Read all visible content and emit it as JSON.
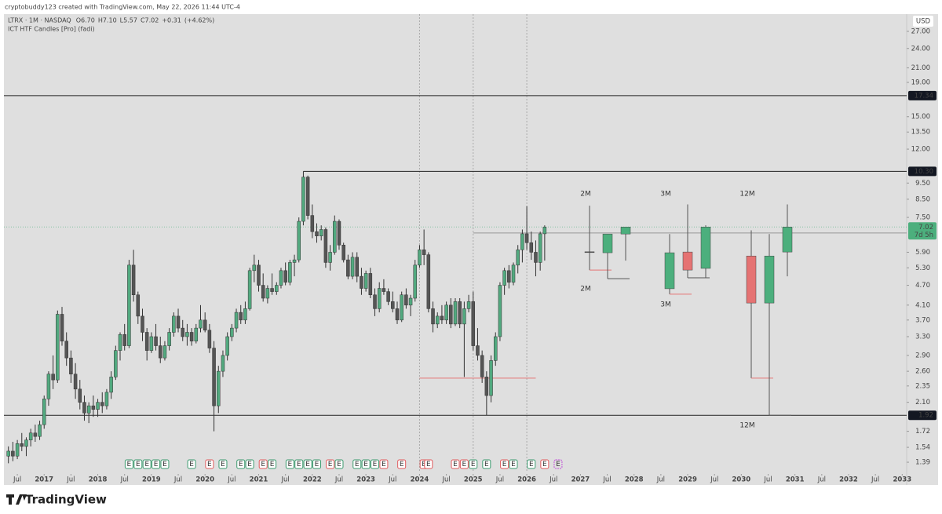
{
  "header": {
    "attribution": "cryptobuddy123 created with TradingView.com, May 22, 2026 11:44 UTC-4"
  },
  "footer": {
    "brand": "TradingView"
  },
  "chart_data": {
    "type": "candlestick",
    "symbol": "LTRX · 1M · NASDAQ",
    "legend_values": [
      {
        "value": 6.7,
        "label": "O6.70"
      },
      {
        "value": 7.1,
        "label": "H7.10"
      },
      {
        "value": 5.57,
        "label": "L5.57"
      },
      {
        "value": 7.02,
        "label": "C7.02"
      },
      {
        "value": 0.31,
        "label": "+0.31"
      },
      {
        "value": 4.62,
        "label": "(+4.62%)"
      }
    ],
    "indicator": "ICT HTF Candles [Pro] (fadi)",
    "currency": "USD",
    "log_scale": true,
    "up_color": "#52a97f",
    "down_color": "#555555",
    "ylim": [
      1.31,
      30.4
    ],
    "yticks": [
      {
        "value": 27,
        "label": "27.00"
      },
      {
        "value": 24,
        "label": "24.00"
      },
      {
        "value": 21,
        "label": "21.00"
      },
      {
        "value": 19,
        "label": "19.00"
      },
      {
        "value": 15,
        "label": "15.00"
      },
      {
        "value": 13.5,
        "label": "13.50"
      },
      {
        "value": 12,
        "label": "12.00"
      },
      {
        "value": 9.5,
        "label": "9.50"
      },
      {
        "value": 8.5,
        "label": "8.50"
      },
      {
        "value": 7.5,
        "label": "7.50"
      },
      {
        "value": 5.9,
        "label": "5.90"
      },
      {
        "value": 5.3,
        "label": "5.30"
      },
      {
        "value": 4.7,
        "label": "4.70"
      },
      {
        "value": 4.1,
        "label": "4.10"
      },
      {
        "value": 3.7,
        "label": "3.70"
      },
      {
        "value": 3.3,
        "label": "3.30"
      },
      {
        "value": 2.9,
        "label": "2.90"
      },
      {
        "value": 2.6,
        "label": "2.60"
      },
      {
        "value": 2.35,
        "label": "2.35"
      },
      {
        "value": 2.1,
        "label": "2.10"
      },
      {
        "value": 1.72,
        "label": "1.72"
      },
      {
        "value": 1.54,
        "label": "1.54"
      },
      {
        "value": 1.39,
        "label": "1.39"
      }
    ],
    "xlim": [
      "2016-04",
      "2033-02"
    ],
    "xticks": [
      {
        "value": "2016-07",
        "label": "Jul"
      },
      {
        "value": "2017-01",
        "label": "2017"
      },
      {
        "value": "2017-07",
        "label": "Jul"
      },
      {
        "value": "2018-01",
        "label": "2018"
      },
      {
        "value": "2018-07",
        "label": "Jul"
      },
      {
        "value": "2019-01",
        "label": "2019"
      },
      {
        "value": "2019-07",
        "label": "Jul"
      },
      {
        "value": "2020-01",
        "label": "2020"
      },
      {
        "value": "2020-07",
        "label": "Jul"
      },
      {
        "value": "2021-01",
        "label": "2021"
      },
      {
        "value": "2021-07",
        "label": "Jul"
      },
      {
        "value": "2022-01",
        "label": "2022"
      },
      {
        "value": "2022-07",
        "label": "Jul"
      },
      {
        "value": "2023-01",
        "label": "2023"
      },
      {
        "value": "2023-07",
        "label": "Jul"
      },
      {
        "value": "2024-01",
        "label": "2024"
      },
      {
        "value": "2024-07",
        "label": "Jul"
      },
      {
        "value": "2025-01",
        "label": "2025"
      },
      {
        "value": "2025-07",
        "label": "Jul"
      },
      {
        "value": "2026-01",
        "label": "2026"
      },
      {
        "value": "2026-07",
        "label": "Jul"
      },
      {
        "value": "2027-01",
        "label": "2027"
      },
      {
        "value": "2027-07",
        "label": "Jul"
      },
      {
        "value": "2028-01",
        "label": "2028"
      },
      {
        "value": "2028-07",
        "label": "Jul"
      },
      {
        "value": "2029-01",
        "label": "2029"
      },
      {
        "value": "2029-07",
        "label": "Jul"
      },
      {
        "value": "2030-01",
        "label": "2030"
      },
      {
        "value": "2030-07",
        "label": "Jul"
      },
      {
        "value": "2031-01",
        "label": "2031"
      },
      {
        "value": "2031-07",
        "label": "Jul"
      },
      {
        "value": "2032-01",
        "label": "2032"
      },
      {
        "value": "2032-07",
        "label": "Jul"
      },
      {
        "value": "2033-01",
        "label": "2033"
      }
    ],
    "x": [
      "2016-05",
      "2016-06",
      "2016-07",
      "2016-08",
      "2016-09",
      "2016-10",
      "2016-11",
      "2016-12",
      "2017-01",
      "2017-02",
      "2017-03",
      "2017-04",
      "2017-05",
      "2017-06",
      "2017-07",
      "2017-08",
      "2017-09",
      "2017-10",
      "2017-11",
      "2017-12",
      "2018-01",
      "2018-02",
      "2018-03",
      "2018-04",
      "2018-05",
      "2018-06",
      "2018-07",
      "2018-08",
      "2018-09",
      "2018-10",
      "2018-11",
      "2018-12",
      "2019-01",
      "2019-02",
      "2019-03",
      "2019-04",
      "2019-05",
      "2019-06",
      "2019-07",
      "2019-08",
      "2019-09",
      "2019-10",
      "2019-11",
      "2019-12",
      "2020-01",
      "2020-02",
      "2020-03",
      "2020-04",
      "2020-05",
      "2020-06",
      "2020-07",
      "2020-08",
      "2020-09",
      "2020-10",
      "2020-11",
      "2020-12",
      "2021-01",
      "2021-02",
      "2021-03",
      "2021-04",
      "2021-05",
      "2021-06",
      "2021-07",
      "2021-08",
      "2021-09",
      "2021-10",
      "2021-11",
      "2021-12",
      "2022-01",
      "2022-02",
      "2022-03",
      "2022-04",
      "2022-05",
      "2022-06",
      "2022-07",
      "2022-08",
      "2022-09",
      "2022-10",
      "2022-11",
      "2022-12",
      "2023-01",
      "2023-02",
      "2023-03",
      "2023-04",
      "2023-05",
      "2023-06",
      "2023-07",
      "2023-08",
      "2023-09",
      "2023-10",
      "2023-11",
      "2023-12",
      "2024-01",
      "2024-02",
      "2024-03",
      "2024-04",
      "2024-05",
      "2024-06",
      "2024-07",
      "2024-08",
      "2024-09",
      "2024-10",
      "2024-11",
      "2024-12",
      "2025-01",
      "2025-02",
      "2025-03",
      "2025-04",
      "2025-05",
      "2025-06",
      "2025-07",
      "2025-08",
      "2025-09",
      "2025-10",
      "2025-11",
      "2025-12",
      "2026-01",
      "2026-02",
      "2026-03",
      "2026-04",
      "2026-05"
    ],
    "candles": [
      [
        1.45,
        1.55,
        1.38,
        1.5
      ],
      [
        1.5,
        1.6,
        1.4,
        1.45
      ],
      [
        1.45,
        1.62,
        1.42,
        1.58
      ],
      [
        1.58,
        1.7,
        1.5,
        1.55
      ],
      [
        1.55,
        1.65,
        1.45,
        1.62
      ],
      [
        1.62,
        1.75,
        1.55,
        1.7
      ],
      [
        1.7,
        1.8,
        1.6,
        1.66
      ],
      [
        1.66,
        1.85,
        1.62,
        1.8
      ],
      [
        1.8,
        2.2,
        1.75,
        2.15
      ],
      [
        2.15,
        2.6,
        2.05,
        2.55
      ],
      [
        2.55,
        2.9,
        2.3,
        2.45
      ],
      [
        2.45,
        3.95,
        2.4,
        3.85
      ],
      [
        3.85,
        4.05,
        3.1,
        3.2
      ],
      [
        3.2,
        3.4,
        2.7,
        2.85
      ],
      [
        2.85,
        3.0,
        2.4,
        2.55
      ],
      [
        2.55,
        2.75,
        2.15,
        2.3
      ],
      [
        2.3,
        2.45,
        2.0,
        2.1
      ],
      [
        2.1,
        2.2,
        1.85,
        1.95
      ],
      [
        1.95,
        2.1,
        1.82,
        2.05
      ],
      [
        2.05,
        2.2,
        1.9,
        2.0
      ],
      [
        2.0,
        2.15,
        1.9,
        2.1
      ],
      [
        2.1,
        2.25,
        1.95,
        2.05
      ],
      [
        2.05,
        2.3,
        2.0,
        2.25
      ],
      [
        2.25,
        2.6,
        2.15,
        2.5
      ],
      [
        2.5,
        3.1,
        2.45,
        3.0
      ],
      [
        3.0,
        3.4,
        2.8,
        3.35
      ],
      [
        3.35,
        3.6,
        3.0,
        3.1
      ],
      [
        3.1,
        5.6,
        3.05,
        5.4
      ],
      [
        5.4,
        6.0,
        4.2,
        4.4
      ],
      [
        4.4,
        4.5,
        3.6,
        3.8
      ],
      [
        3.8,
        4.0,
        3.2,
        3.4
      ],
      [
        3.4,
        3.5,
        2.8,
        3.0
      ],
      [
        3.0,
        3.4,
        2.95,
        3.3
      ],
      [
        3.3,
        3.6,
        3.0,
        3.1
      ],
      [
        3.1,
        3.3,
        2.75,
        2.85
      ],
      [
        2.85,
        3.2,
        2.8,
        3.1
      ],
      [
        3.1,
        3.5,
        3.0,
        3.4
      ],
      [
        3.4,
        3.9,
        3.3,
        3.8
      ],
      [
        3.8,
        4.0,
        3.4,
        3.5
      ],
      [
        3.5,
        3.7,
        3.2,
        3.3
      ],
      [
        3.3,
        3.6,
        3.1,
        3.4
      ],
      [
        3.4,
        3.5,
        3.1,
        3.2
      ],
      [
        3.2,
        3.6,
        3.15,
        3.5
      ],
      [
        3.5,
        4.1,
        3.4,
        3.7
      ],
      [
        3.7,
        3.9,
        3.4,
        3.45
      ],
      [
        3.45,
        3.6,
        2.95,
        3.05
      ],
      [
        3.05,
        3.2,
        1.72,
        2.05
      ],
      [
        2.05,
        2.7,
        1.95,
        2.6
      ],
      [
        2.6,
        3.0,
        2.5,
        2.9
      ],
      [
        2.9,
        3.4,
        2.8,
        3.3
      ],
      [
        3.3,
        3.6,
        3.2,
        3.5
      ],
      [
        3.5,
        4.0,
        3.4,
        3.9
      ],
      [
        3.9,
        4.1,
        3.6,
        3.7
      ],
      [
        3.7,
        4.2,
        3.6,
        4.0
      ],
      [
        4.0,
        5.3,
        3.95,
        5.2
      ],
      [
        5.2,
        5.8,
        4.8,
        5.4
      ],
      [
        5.4,
        5.6,
        4.5,
        4.7
      ],
      [
        4.7,
        5.1,
        4.2,
        4.3
      ],
      [
        4.3,
        4.7,
        4.15,
        4.6
      ],
      [
        4.6,
        5.1,
        4.4,
        4.5
      ],
      [
        4.5,
        4.8,
        4.4,
        4.7
      ],
      [
        4.7,
        5.3,
        4.6,
        5.2
      ],
      [
        5.2,
        5.5,
        4.7,
        4.8
      ],
      [
        4.8,
        5.6,
        4.7,
        5.5
      ],
      [
        5.5,
        5.8,
        5.0,
        5.6
      ],
      [
        5.6,
        7.5,
        5.5,
        7.3
      ],
      [
        7.3,
        10.3,
        7.1,
        9.9
      ],
      [
        9.9,
        10.0,
        7.4,
        7.6
      ],
      [
        7.6,
        8.2,
        6.5,
        6.8
      ],
      [
        6.8,
        7.2,
        6.3,
        6.6
      ],
      [
        6.6,
        7.1,
        6.4,
        6.9
      ],
      [
        6.9,
        7.0,
        5.3,
        5.5
      ],
      [
        5.5,
        6.2,
        5.2,
        5.9
      ],
      [
        5.9,
        7.6,
        5.8,
        7.3
      ],
      [
        7.3,
        7.4,
        6.0,
        6.2
      ],
      [
        6.2,
        6.3,
        5.5,
        5.6
      ],
      [
        5.6,
        5.8,
        4.9,
        5.0
      ],
      [
        5.0,
        5.9,
        4.9,
        5.7
      ],
      [
        5.7,
        5.9,
        4.8,
        5.0
      ],
      [
        5.0,
        5.3,
        4.4,
        4.6
      ],
      [
        4.6,
        5.2,
        4.5,
        5.1
      ],
      [
        5.1,
        5.3,
        4.3,
        4.4
      ],
      [
        4.4,
        4.6,
        3.8,
        4.0
      ],
      [
        4.0,
        4.8,
        3.9,
        4.6
      ],
      [
        4.6,
        4.9,
        4.4,
        4.5
      ],
      [
        4.5,
        4.6,
        4.1,
        4.2
      ],
      [
        4.2,
        4.5,
        3.9,
        4.0
      ],
      [
        4.0,
        4.2,
        3.6,
        3.7
      ],
      [
        3.7,
        4.5,
        3.65,
        4.4
      ],
      [
        4.4,
        4.6,
        4.0,
        4.1
      ],
      [
        4.1,
        4.4,
        3.8,
        4.3
      ],
      [
        4.3,
        5.6,
        4.2,
        5.4
      ],
      [
        5.4,
        6.2,
        5.3,
        6.0
      ],
      [
        6.0,
        6.9,
        5.4,
        5.8
      ],
      [
        5.8,
        5.9,
        3.9,
        4.0
      ],
      [
        4.0,
        4.2,
        3.4,
        3.6
      ],
      [
        3.6,
        3.9,
        3.5,
        3.8
      ],
      [
        3.8,
        4.1,
        3.6,
        3.7
      ],
      [
        3.7,
        4.2,
        3.6,
        4.1
      ],
      [
        4.1,
        4.3,
        3.5,
        3.6
      ],
      [
        3.6,
        4.3,
        3.55,
        4.2
      ],
      [
        4.2,
        4.3,
        3.5,
        3.6
      ],
      [
        3.6,
        4.2,
        2.5,
        4.0
      ],
      [
        4.0,
        4.4,
        3.9,
        4.2
      ],
      [
        4.2,
        4.5,
        3.0,
        3.1
      ],
      [
        3.1,
        3.5,
        2.8,
        2.9
      ],
      [
        2.9,
        3.0,
        2.4,
        2.5
      ],
      [
        2.5,
        2.6,
        1.92,
        2.2
      ],
      [
        2.2,
        2.9,
        2.1,
        2.8
      ],
      [
        2.8,
        3.4,
        2.7,
        3.3
      ],
      [
        3.3,
        4.8,
        3.2,
        4.7
      ],
      [
        4.7,
        5.3,
        4.4,
        5.2
      ],
      [
        5.2,
        5.4,
        4.6,
        4.8
      ],
      [
        4.8,
        5.5,
        4.7,
        5.4
      ],
      [
        5.4,
        6.2,
        5.1,
        6.0
      ],
      [
        6.0,
        6.9,
        5.5,
        6.7
      ],
      [
        6.7,
        8.1,
        6.0,
        6.3
      ],
      [
        6.3,
        6.8,
        5.6,
        5.9
      ],
      [
        5.9,
        6.4,
        5.0,
        5.5
      ],
      [
        5.5,
        6.8,
        5.2,
        6.7
      ],
      [
        6.7,
        7.1,
        5.57,
        7.02
      ]
    ],
    "price_levels": [
      {
        "value": 17.34,
        "label": "17.34"
      },
      {
        "value": 10.3,
        "label": "10.30",
        "start": "2021-11"
      },
      {
        "value": 6.74,
        "label": "6.74",
        "start": "2025-01"
      },
      {
        "value": 1.92,
        "label": "1.92"
      }
    ],
    "marked_levels": [
      {
        "value": 2.48,
        "start": "2024-01",
        "end": "2026-03",
        "color": "#e57373"
      }
    ],
    "last_price": {
      "value": 7.02,
      "label": "7.02",
      "countdown": "7d 5h",
      "color": "#4caf7d"
    },
    "session_breaks": [
      "2024-01",
      "2025-01",
      "2026-01"
    ],
    "htf_up_color": "#4caf7d",
    "htf_down_color": "#e57373",
    "htf_groups": [
      {
        "label": "2M",
        "candles": [
          [
            5.92,
            8.13,
            5.22,
            5.9
          ],
          [
            5.88,
            6.69,
            4.92,
            6.69
          ],
          [
            6.69,
            7.02,
            5.57,
            7.02
          ]
        ]
      },
      {
        "label": "3M",
        "candles": [
          [
            4.59,
            6.69,
            4.42,
            5.88
          ],
          [
            5.91,
            8.2,
            4.95,
            5.22
          ],
          [
            5.28,
            7.1,
            4.95,
            7.02
          ]
        ]
      },
      {
        "label": "12M",
        "candles": [
          [
            5.75,
            6.86,
            2.48,
            4.16
          ],
          [
            4.16,
            6.69,
            1.92,
            5.75
          ],
          [
            5.91,
            8.2,
            5.0,
            7.02
          ]
        ]
      }
    ],
    "earnings_label": "E",
    "earnings": [
      {
        "x": "2018-08",
        "color": "#3a9a6e"
      },
      {
        "x": "2018-10",
        "color": "#3a9a6e"
      },
      {
        "x": "2018-12",
        "color": "#3a9a6e"
      },
      {
        "x": "2019-02",
        "color": "#3a9a6e"
      },
      {
        "x": "2019-04",
        "color": "#3a9a6e"
      },
      {
        "x": "2019-10",
        "color": "#3a9a6e"
      },
      {
        "x": "2020-02",
        "color": "#e0585b"
      },
      {
        "x": "2020-05",
        "color": "#3a9a6e"
      },
      {
        "x": "2020-09",
        "color": "#3a9a6e"
      },
      {
        "x": "2020-11",
        "color": "#3a9a6e"
      },
      {
        "x": "2021-02",
        "color": "#e0585b"
      },
      {
        "x": "2021-04",
        "color": "#3a9a6e"
      },
      {
        "x": "2021-08",
        "color": "#3a9a6e"
      },
      {
        "x": "2021-10",
        "color": "#3a9a6e"
      },
      {
        "x": "2021-12",
        "color": "#3a9a6e"
      },
      {
        "x": "2022-02",
        "color": "#3a9a6e"
      },
      {
        "x": "2022-05",
        "color": "#e0585b"
      },
      {
        "x": "2022-07",
        "color": "#3a9a6e"
      },
      {
        "x": "2022-11",
        "color": "#3a9a6e"
      },
      {
        "x": "2023-01",
        "color": "#3a9a6e"
      },
      {
        "x": "2023-03",
        "color": "#3a9a6e"
      },
      {
        "x": "2023-05",
        "color": "#e0585b"
      },
      {
        "x": "2023-09",
        "color": "#e0585b"
      },
      {
        "x": "2024-02",
        "color": "#e0585b"
      },
      {
        "x": "2024-03",
        "color": "#e0585b"
      },
      {
        "x": "2024-09",
        "color": "#e0585b"
      },
      {
        "x": "2024-11",
        "color": "#e0585b"
      },
      {
        "x": "2025-01",
        "color": "#3a9a6e"
      },
      {
        "x": "2025-04",
        "color": "#3a9a6e"
      },
      {
        "x": "2025-08",
        "color": "#e0585b"
      },
      {
        "x": "2025-10",
        "color": "#3a9a6e"
      },
      {
        "x": "2026-02",
        "color": "#3a9a6e"
      },
      {
        "x": "2026-05",
        "color": "#e0585b"
      },
      {
        "x": "2026-08",
        "color": "#c04fd8"
      }
    ]
  }
}
